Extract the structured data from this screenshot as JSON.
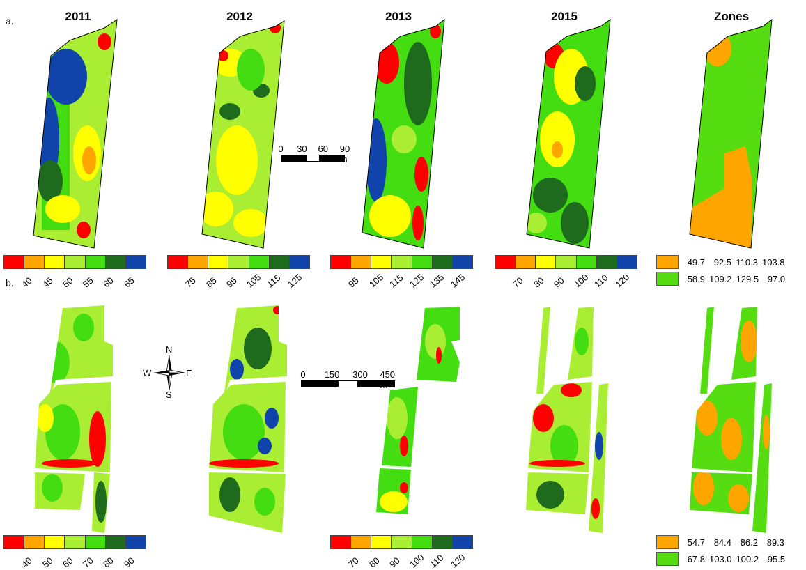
{
  "panels": {
    "a": "a.",
    "b": "b."
  },
  "years": [
    "2011",
    "2012",
    "2013",
    "2015",
    "Zones"
  ],
  "colors": {
    "ramp": [
      "#ff0000",
      "#ffa500",
      "#ffff00",
      "#aaee33",
      "#44dd11",
      "#1e6b1e",
      "#1144aa"
    ],
    "zone_low": "#ffa500",
    "zone_high": "#55dd11"
  },
  "legends_a": [
    [
      "40",
      "45",
      "50",
      "55",
      "60",
      "65"
    ],
    [
      "75",
      "85",
      "95",
      "105",
      "115",
      "125"
    ],
    [
      "95",
      "105",
      "115",
      "125",
      "135",
      "145"
    ],
    [
      "70",
      "80",
      "90",
      "100",
      "110",
      "120"
    ]
  ],
  "legends_b": [
    [
      "40",
      "50",
      "60",
      "70",
      "80",
      "90"
    ],
    [
      "70",
      "80",
      "90",
      "100",
      "110",
      "120"
    ]
  ],
  "zones_a": [
    [
      "49.7",
      "92.5",
      "110.3",
      "103.8"
    ],
    [
      "58.9",
      "109.2",
      "129.5",
      "97.0"
    ]
  ],
  "zones_b": [
    [
      "54.7",
      "84.4",
      "86.2",
      "89.3"
    ],
    [
      "67.8",
      "103.0",
      "100.2",
      "95.5"
    ]
  ],
  "scale_a": {
    "labels": [
      "0",
      "30",
      "60",
      "90 m"
    ]
  },
  "scale_b": {
    "labels": [
      "0",
      "150",
      "300",
      "450 m"
    ]
  },
  "compass": {
    "n": "N",
    "s": "S",
    "e": "E",
    "w": "W"
  }
}
